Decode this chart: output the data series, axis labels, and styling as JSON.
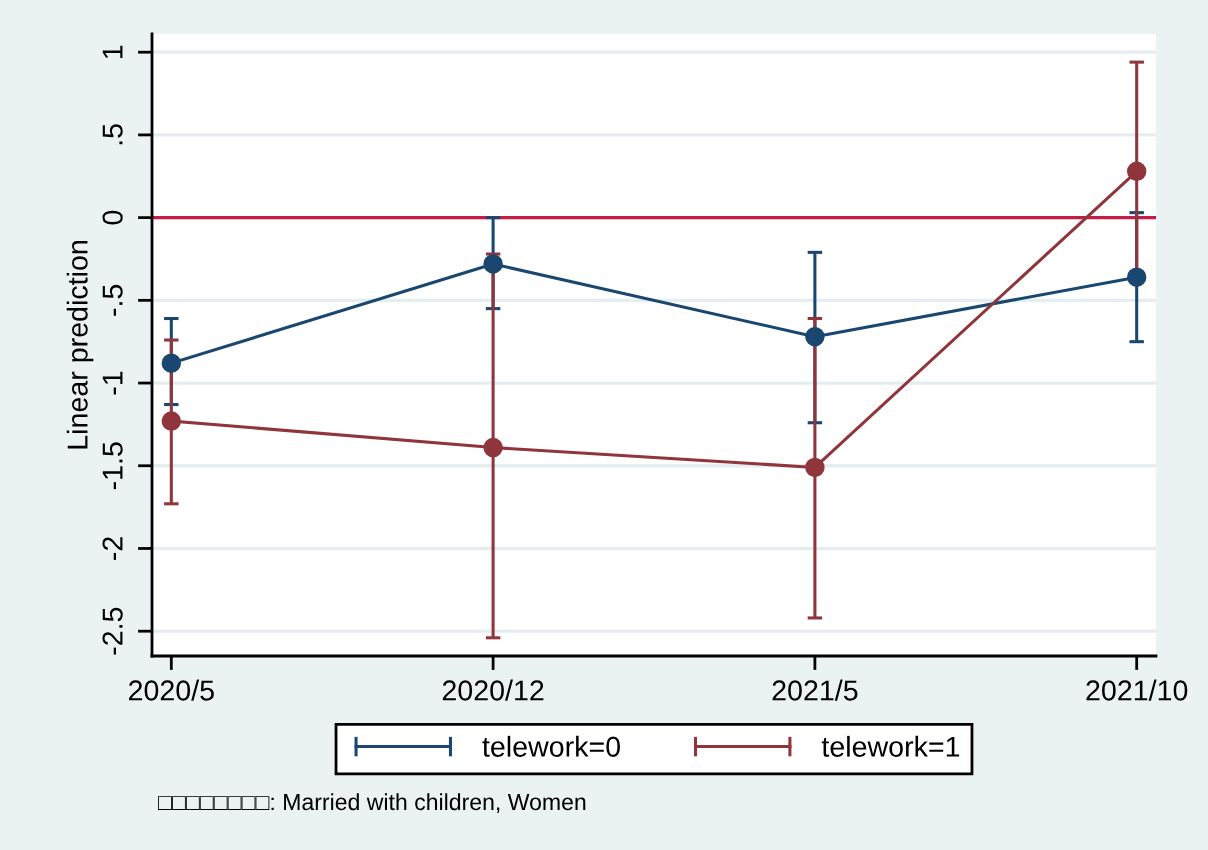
{
  "chart_data": {
    "type": "line",
    "ylabel": "Linear prediction",
    "categories": [
      "2020/5",
      "2020/12",
      "2021/5",
      "2021/10"
    ],
    "series": [
      {
        "name": "telework=0",
        "color": "#1a476f",
        "values": [
          -0.88,
          -0.28,
          -0.72,
          -0.36
        ],
        "errors": [
          [
            -1.13,
            -0.61
          ],
          [
            -0.55,
            0.0
          ],
          [
            -1.24,
            -0.21
          ],
          [
            -0.75,
            0.03
          ]
        ]
      },
      {
        "name": "telework=1",
        "color": "#90353b",
        "values": [
          -1.23,
          -1.39,
          -1.51,
          0.28
        ],
        "errors": [
          [
            -1.73,
            -0.74
          ],
          [
            -2.54,
            -0.22
          ],
          [
            -2.42,
            -0.61
          ],
          [
            -0.38,
            0.94
          ]
        ]
      }
    ],
    "ylim": [
      -2.65,
      1.11
    ],
    "yticks": [
      1,
      {
        "value": 0.5,
        "label": ".5"
      },
      0,
      {
        "value": -0.5,
        "label": "-.5"
      },
      -1,
      -1.5,
      -2,
      -2.5
    ],
    "ref_lines": [
      {
        "axis": "y",
        "value": 0,
        "color": "#c41e48"
      }
    ],
    "grid": "y",
    "legend": "bottom",
    "marker": "circle",
    "line_style": "solid",
    "annotations": [
      "□□□□□□□□: Married with children, Women"
    ]
  }
}
